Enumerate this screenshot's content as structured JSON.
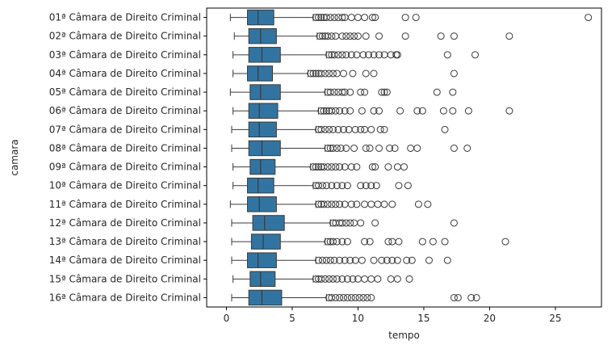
{
  "chart_data": {
    "type": "boxplot",
    "orientation": "horizontal",
    "xlabel": "tempo",
    "ylabel": "camara",
    "xlim": [
      -1.5,
      28.5
    ],
    "x_ticks": [
      0,
      5,
      10,
      15,
      20,
      25
    ],
    "grid": false,
    "legend": "none",
    "box_color": "#3274a1",
    "line_color": "#3a3a3a",
    "categories": [
      "01ª Câmara de Direito Criminal",
      "02ª Câmara de Direito Criminal",
      "03ª Câmara de Direito Criminal",
      "04ª Câmara de Direito Criminal",
      "05ª Câmara de Direito Criminal",
      "06ª Câmara de Direito Criminal",
      "07ª Câmara de Direito Criminal",
      "08ª Câmara de Direito Criminal",
      "09ª Câmara de Direito Criminal",
      "10ª Câmara de Direito Criminal",
      "11ª Câmara de Direito Criminal",
      "12ª Câmara de Direito Criminal",
      "13ª Câmara de Direito Criminal",
      "14ª Câmara de Direito Criminal",
      "15ª Câmara de Direito Criminal",
      "16ª Câmara de Direito Criminal"
    ],
    "boxes": [
      {
        "whisker_low": 0.3,
        "q1": 1.6,
        "median": 2.4,
        "q3": 3.6,
        "whisker_high": 6.6,
        "outliers": [
          6.8,
          7.0,
          7.2,
          7.4,
          7.6,
          7.9,
          8.2,
          8.5,
          8.8,
          9.0,
          9.5,
          10.0,
          10.5,
          11.1,
          11.3,
          13.6,
          14.4,
          27.5
        ]
      },
      {
        "whisker_low": 0.6,
        "q1": 1.7,
        "median": 2.6,
        "q3": 3.8,
        "whisker_high": 6.9,
        "outliers": [
          7.1,
          7.3,
          7.5,
          7.7,
          8.0,
          8.3,
          8.8,
          9.1,
          9.4,
          9.7,
          10.0,
          10.6,
          11.6,
          13.6,
          16.3,
          17.3,
          21.5
        ]
      },
      {
        "whisker_low": 0.5,
        "q1": 1.7,
        "median": 2.7,
        "q3": 4.1,
        "whisker_high": 7.6,
        "outliers": [
          7.8,
          8.0,
          8.2,
          8.5,
          8.8,
          9.1,
          9.5,
          9.9,
          10.4,
          10.8,
          11.2,
          11.6,
          12.0,
          12.5,
          12.9,
          13.0,
          16.8,
          18.9
        ]
      },
      {
        "whisker_low": 0.5,
        "q1": 1.6,
        "median": 2.4,
        "q3": 3.5,
        "whisker_high": 6.2,
        "outliers": [
          6.4,
          6.6,
          6.8,
          7.0,
          7.2,
          7.5,
          7.8,
          8.1,
          8.4,
          8.9,
          9.6,
          10.6,
          11.2,
          17.3
        ]
      },
      {
        "whisker_low": 0.3,
        "q1": 1.8,
        "median": 2.6,
        "q3": 4.1,
        "whisker_high": 7.5,
        "outliers": [
          7.7,
          7.9,
          8.2,
          8.5,
          8.8,
          9.0,
          9.4,
          10.2,
          10.5,
          11.8,
          12.0,
          12.2,
          16.0,
          17.2
        ]
      },
      {
        "whisker_low": 0.5,
        "q1": 1.7,
        "median": 2.5,
        "q3": 3.9,
        "whisker_high": 7.0,
        "outliers": [
          7.2,
          7.4,
          7.6,
          7.8,
          8.0,
          8.3,
          8.6,
          9.0,
          9.4,
          10.3,
          11.2,
          11.6,
          13.2,
          14.5,
          14.9,
          16.5,
          17.2,
          18.4,
          21.5
        ]
      },
      {
        "whisker_low": 0.4,
        "q1": 1.7,
        "median": 2.5,
        "q3": 3.8,
        "whisker_high": 6.8,
        "outliers": [
          7.0,
          7.2,
          7.5,
          7.8,
          8.1,
          8.5,
          8.9,
          9.3,
          9.8,
          10.2,
          10.5,
          11.0,
          11.7,
          12.0,
          16.6
        ]
      },
      {
        "whisker_low": 0.4,
        "q1": 1.7,
        "median": 2.7,
        "q3": 4.1,
        "whisker_high": 7.5,
        "outliers": [
          7.7,
          7.9,
          8.1,
          8.4,
          8.7,
          9.1,
          9.7,
          10.6,
          10.9,
          11.6,
          12.4,
          12.8,
          14.0,
          14.5,
          17.3,
          18.3
        ]
      },
      {
        "whisker_low": 0.5,
        "q1": 1.8,
        "median": 2.6,
        "q3": 3.7,
        "whisker_high": 6.4,
        "outliers": [
          6.6,
          6.8,
          7.0,
          7.2,
          7.4,
          7.7,
          8.0,
          8.3,
          8.6,
          9.0,
          9.5,
          9.9,
          11.1,
          11.3,
          12.3,
          13.0,
          13.5
        ]
      },
      {
        "whisker_low": 0.5,
        "q1": 1.6,
        "median": 2.4,
        "q3": 3.6,
        "whisker_high": 6.6,
        "outliers": [
          6.8,
          7.0,
          7.3,
          7.6,
          8.0,
          8.4,
          8.8,
          9.2,
          10.2,
          10.6,
          11.0,
          11.4,
          13.1,
          13.8
        ]
      },
      {
        "whisker_low": 0.3,
        "q1": 1.6,
        "median": 2.5,
        "q3": 3.8,
        "whisker_high": 6.8,
        "outliers": [
          7.0,
          7.2,
          7.4,
          7.7,
          8.0,
          8.3,
          8.6,
          9.0,
          9.5,
          9.9,
          10.5,
          11.0,
          11.5,
          12.0,
          12.6,
          14.6,
          15.3
        ]
      },
      {
        "whisker_low": 0.4,
        "q1": 2.0,
        "median": 2.9,
        "q3": 4.4,
        "whisker_high": 7.9,
        "outliers": [
          8.1,
          8.3,
          8.6,
          8.8,
          9.1,
          9.4,
          9.7,
          10.2,
          11.3,
          17.3
        ]
      },
      {
        "whisker_low": 0.4,
        "q1": 1.9,
        "median": 2.8,
        "q3": 4.1,
        "whisker_high": 7.5,
        "outliers": [
          7.7,
          7.9,
          8.1,
          8.4,
          8.8,
          9.2,
          10.5,
          10.9,
          12.3,
          12.6,
          13.1,
          14.9,
          15.7,
          16.6,
          21.2
        ]
      },
      {
        "whisker_low": 0.4,
        "q1": 1.6,
        "median": 2.4,
        "q3": 3.8,
        "whisker_high": 6.8,
        "outliers": [
          7.0,
          7.3,
          7.6,
          7.9,
          8.2,
          8.6,
          9.0,
          9.4,
          9.8,
          10.3,
          11.2,
          11.8,
          12.2,
          12.6,
          13.0,
          13.7,
          14.1,
          15.4,
          16.8
        ]
      },
      {
        "whisker_low": 0.5,
        "q1": 1.8,
        "median": 2.6,
        "q3": 3.7,
        "whisker_high": 6.6,
        "outliers": [
          6.8,
          7.0,
          7.2,
          7.5,
          7.8,
          8.1,
          8.4,
          8.8,
          9.2,
          9.6,
          10.0,
          10.5,
          11.0,
          11.5,
          12.5,
          13.0,
          13.9
        ]
      },
      {
        "whisker_low": 0.4,
        "q1": 1.7,
        "median": 2.7,
        "q3": 4.2,
        "whisker_high": 7.6,
        "outliers": [
          7.8,
          8.0,
          8.3,
          8.6,
          8.9,
          9.2,
          9.5,
          9.8,
          10.1,
          10.4,
          10.7,
          11.0,
          17.3,
          17.6,
          18.6,
          19.0
        ]
      }
    ]
  }
}
